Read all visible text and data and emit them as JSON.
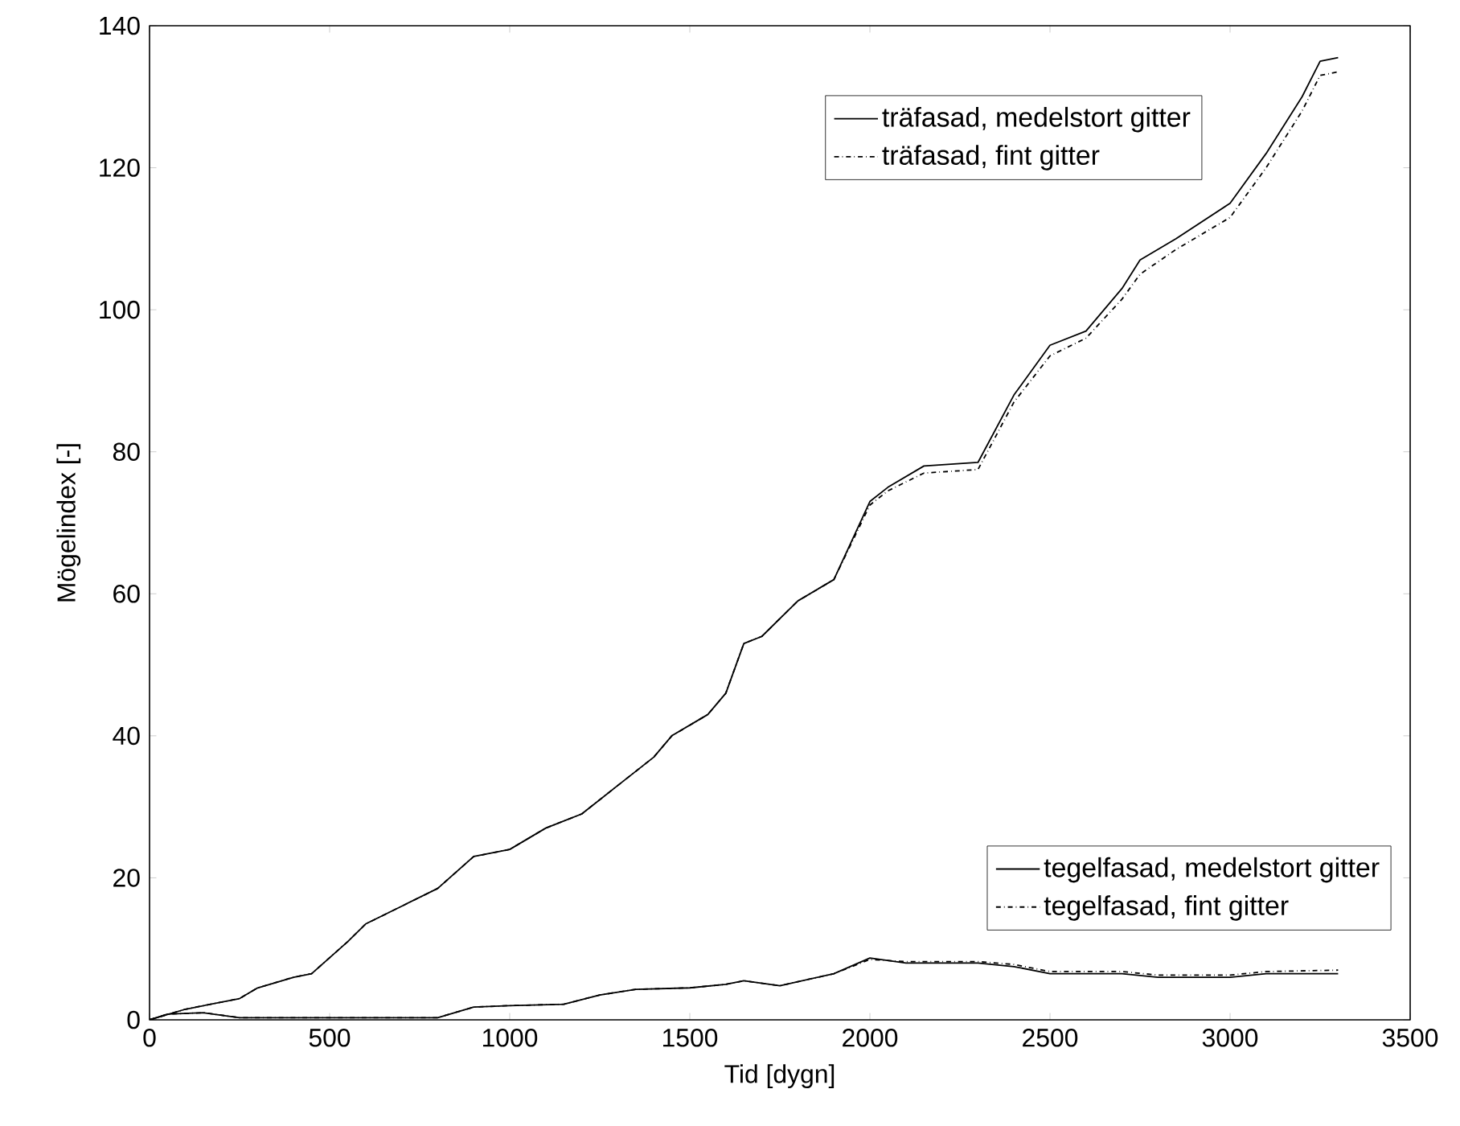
{
  "chart_data": {
    "type": "line",
    "xlabel": "Tid [dygn]",
    "ylabel": "Mögelindex [-]",
    "xlim": [
      0,
      3500
    ],
    "ylim": [
      0,
      140
    ],
    "xticks": [
      0,
      500,
      1000,
      1500,
      2000,
      2500,
      3000,
      3500
    ],
    "yticks": [
      0,
      20,
      40,
      60,
      80,
      100,
      120,
      140
    ],
    "legend": "right",
    "series": [
      {
        "name": "träfasad, medelstort gitter",
        "color": "#000000",
        "line_style": "solid",
        "x": [
          0,
          100,
          250,
          300,
          400,
          450,
          550,
          600,
          700,
          800,
          900,
          1000,
          1100,
          1200,
          1300,
          1400,
          1450,
          1550,
          1600,
          1650,
          1700,
          1800,
          1900,
          2000,
          2050,
          2150,
          2300,
          2400,
          2500,
          2600,
          2700,
          2750,
          2850,
          3000,
          3100,
          3200,
          3250,
          3300
        ],
        "values": [
          0,
          1.5,
          3,
          4.5,
          6,
          6.5,
          11,
          13.5,
          16,
          18.5,
          23,
          24,
          27,
          29,
          33,
          37,
          40,
          43,
          46,
          53,
          54,
          59,
          62,
          73,
          75,
          78,
          78.5,
          88,
          95,
          97,
          103,
          107,
          110,
          115,
          122,
          130,
          135,
          135.5
        ]
      },
      {
        "name": "träfasad, fint gitter",
        "color": "#000000",
        "line_style": "dashdot",
        "x": [
          0,
          100,
          250,
          300,
          400,
          450,
          550,
          600,
          700,
          800,
          900,
          1000,
          1100,
          1200,
          1300,
          1400,
          1450,
          1550,
          1600,
          1650,
          1700,
          1800,
          1900,
          2000,
          2050,
          2150,
          2300,
          2400,
          2500,
          2600,
          2700,
          2750,
          2850,
          3000,
          3100,
          3200,
          3250,
          3300
        ],
        "values": [
          0,
          1.5,
          3,
          4.5,
          6,
          6.5,
          11,
          13.5,
          16,
          18.5,
          23,
          24,
          27,
          29,
          33,
          37,
          40,
          43,
          46,
          53,
          54,
          59,
          62,
          72.5,
          74.5,
          77,
          77.5,
          87,
          93.5,
          96,
          101.5,
          105,
          108.5,
          113,
          120,
          128,
          133,
          133.5
        ]
      },
      {
        "name": "tegelfasad, medelstort gitter",
        "color": "#000000",
        "line_style": "solid",
        "x": [
          0,
          50,
          150,
          250,
          500,
          800,
          900,
          1000,
          1150,
          1250,
          1350,
          1500,
          1600,
          1650,
          1750,
          1900,
          2000,
          2100,
          2300,
          2400,
          2500,
          2700,
          2800,
          3000,
          3100,
          3300
        ],
        "values": [
          0,
          0.8,
          1,
          0.3,
          0.3,
          0.3,
          1.8,
          2,
          2.2,
          3.5,
          4.3,
          4.5,
          5,
          5.5,
          4.8,
          6.5,
          8.7,
          8,
          8,
          7.5,
          6.5,
          6.5,
          6,
          6,
          6.5,
          6.5
        ]
      },
      {
        "name": "tegelfasad, fint gitter",
        "color": "#000000",
        "line_style": "dashdot",
        "x": [
          0,
          50,
          150,
          250,
          500,
          800,
          900,
          1000,
          1150,
          1250,
          1350,
          1500,
          1600,
          1650,
          1750,
          1900,
          2000,
          2100,
          2300,
          2400,
          2500,
          2700,
          2800,
          3000,
          3100,
          3300
        ],
        "values": [
          0,
          0.8,
          1,
          0.3,
          0.3,
          0.3,
          1.8,
          2,
          2.2,
          3.5,
          4.3,
          4.5,
          5,
          5.5,
          4.8,
          6.5,
          8.5,
          8.2,
          8.2,
          7.8,
          6.8,
          6.8,
          6.3,
          6.3,
          6.8,
          7
        ]
      }
    ]
  }
}
